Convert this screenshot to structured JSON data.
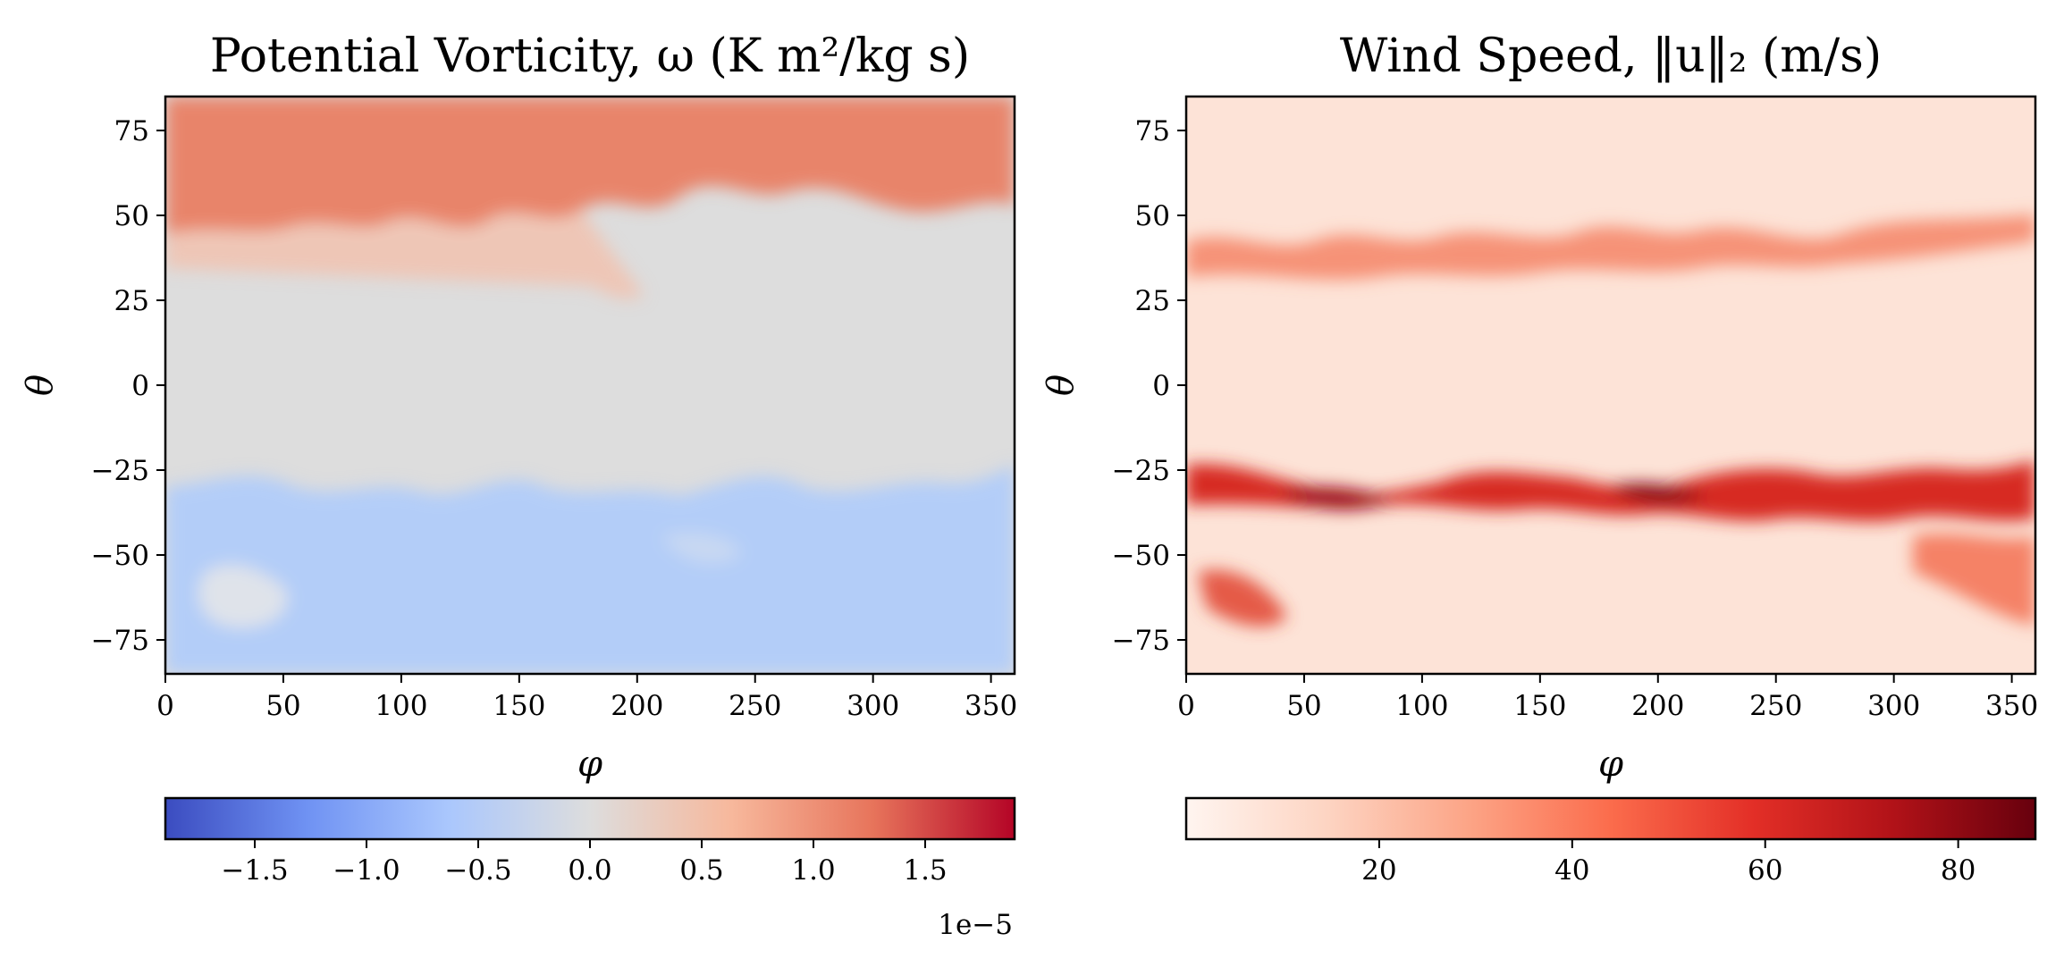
{
  "chart_data": [
    {
      "type": "heatmap",
      "title": "Potential Vorticity, ω (K m²/kg s)",
      "xlabel": "φ",
      "ylabel": "θ",
      "xlim": [
        0,
        360
      ],
      "ylim": [
        -85,
        85
      ],
      "xticks": [
        0,
        50,
        100,
        150,
        200,
        250,
        300,
        350
      ],
      "xtick_labels": [
        "0",
        "50",
        "100",
        "150",
        "200",
        "250",
        "300",
        "350"
      ],
      "yticks": [
        75,
        50,
        25,
        0,
        -25,
        -50,
        -75
      ],
      "ytick_labels": [
        "75",
        "50",
        "25",
        "0",
        "−25",
        "−50",
        "−75"
      ],
      "colormap": "coolwarm",
      "colormap_stops": [
        "#3b4cc0",
        "#6f92f3",
        "#aac7fd",
        "#dddddd",
        "#f7b89c",
        "#e7745b",
        "#b40426"
      ],
      "clim": [
        -1.9e-05,
        1.9e-05
      ],
      "colorbar_ticks": [
        -1.5,
        -1.0,
        -0.5,
        0.0,
        0.5,
        1.0,
        1.5
      ],
      "colorbar_tick_labels": [
        "−1.5",
        "−1.0",
        "−0.5",
        "0.0",
        "0.5",
        "1.0",
        "1.5"
      ],
      "colorbar_offset": "1e−5",
      "colorbar_location": "bottom"
    },
    {
      "type": "heatmap",
      "title": "Wind Speed, ‖u‖₂ (m/s)",
      "xlabel": "φ",
      "ylabel": "θ",
      "xlim": [
        0,
        360
      ],
      "ylim": [
        -85,
        85
      ],
      "xticks": [
        0,
        50,
        100,
        150,
        200,
        250,
        300,
        350
      ],
      "xtick_labels": [
        "0",
        "50",
        "100",
        "150",
        "200",
        "250",
        "300",
        "350"
      ],
      "yticks": [
        75,
        50,
        25,
        0,
        -25,
        -50,
        -75
      ],
      "ytick_labels": [
        "75",
        "50",
        "25",
        "0",
        "−25",
        "−50",
        "−75"
      ],
      "colormap": "Reds",
      "colormap_stops": [
        "#fff5f0",
        "#fdd4c2",
        "#fca486",
        "#fb6c4c",
        "#e32f27",
        "#b11218",
        "#67000d"
      ],
      "clim": [
        0,
        88
      ],
      "colorbar_ticks": [
        20,
        40,
        60,
        80
      ],
      "colorbar_tick_labels": [
        "20",
        "40",
        "60",
        "80"
      ],
      "colorbar_location": "bottom"
    }
  ]
}
